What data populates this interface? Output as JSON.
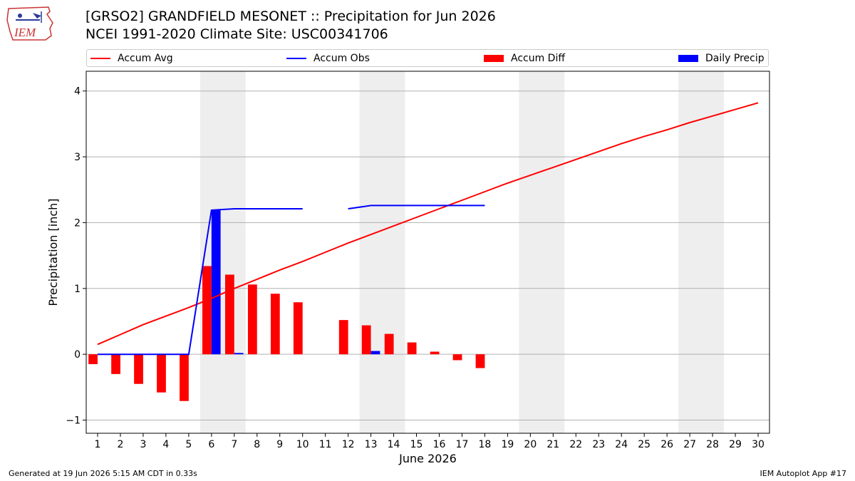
{
  "header": {
    "title_line1": "[GRSO2] GRANDFIELD MESONET :: Precipitation for Jun 2026",
    "title_line2": "NCEI 1991-2020 Climate Site: USC00341706",
    "logo_text": "IEM"
  },
  "colors": {
    "accum_avg": "#ff0000",
    "accum_obs": "#0000ff",
    "accum_diff": "#ff0000",
    "daily_precip": "#0000ff",
    "weekend_shade": "#eeeeee",
    "grid": "#b0b0b0"
  },
  "chart_data": {
    "type": "bar",
    "xlabel": "June 2026",
    "ylabel": "Precipitation [inch]",
    "xlim": [
      0.5,
      30.5
    ],
    "ylim": [
      -1.2,
      4.3
    ],
    "yticks": [
      -1,
      0,
      1,
      2,
      3,
      4
    ],
    "xticks": [
      1,
      2,
      3,
      4,
      5,
      6,
      7,
      8,
      9,
      10,
      11,
      12,
      13,
      14,
      15,
      16,
      17,
      18,
      19,
      20,
      21,
      22,
      23,
      24,
      25,
      26,
      27,
      28,
      29,
      30
    ],
    "grid": "horizontal",
    "legend_position": "top",
    "weekend_shading": [
      [
        5.5,
        7.5
      ],
      [
        12.5,
        14.5
      ],
      [
        19.5,
        21.5
      ],
      [
        26.5,
        28.5
      ]
    ],
    "series": [
      {
        "name": "Accum Avg",
        "kind": "line",
        "x": [
          1,
          2,
          3,
          4,
          5,
          6,
          7,
          8,
          9,
          10,
          11,
          12,
          13,
          14,
          15,
          16,
          17,
          18,
          19,
          20,
          21,
          22,
          23,
          24,
          25,
          26,
          27,
          28,
          29,
          30
        ],
        "values": [
          0.15,
          0.3,
          0.45,
          0.58,
          0.71,
          0.85,
          1.0,
          1.14,
          1.28,
          1.41,
          1.55,
          1.69,
          1.82,
          1.95,
          2.08,
          2.21,
          2.34,
          2.47,
          2.6,
          2.72,
          2.84,
          2.96,
          3.08,
          3.2,
          3.31,
          3.41,
          3.52,
          3.62,
          3.72,
          3.82
        ]
      },
      {
        "name": "Accum Obs",
        "kind": "line",
        "x": [
          1,
          2,
          3,
          4,
          5,
          6,
          7,
          8,
          9,
          10,
          11,
          12,
          13,
          14,
          15,
          16,
          17,
          18
        ],
        "values": [
          0.0,
          0.0,
          0.0,
          0.0,
          0.0,
          2.19,
          2.21,
          2.21,
          2.21,
          2.21,
          null,
          2.21,
          2.26,
          2.26,
          2.26,
          2.26,
          2.26,
          2.26
        ]
      },
      {
        "name": "Accum Diff",
        "kind": "bar",
        "x": [
          1,
          2,
          3,
          4,
          5,
          6,
          7,
          8,
          9,
          10,
          11,
          12,
          13,
          14,
          15,
          16,
          17,
          18
        ],
        "values": [
          -0.15,
          -0.3,
          -0.45,
          -0.58,
          -0.71,
          1.34,
          1.21,
          1.06,
          0.92,
          0.79,
          null,
          0.52,
          0.44,
          0.31,
          0.18,
          0.04,
          -0.09,
          -0.21
        ]
      },
      {
        "name": "Daily Precip",
        "kind": "bar",
        "x": [
          1,
          2,
          3,
          4,
          5,
          6,
          7,
          8,
          9,
          10,
          11,
          12,
          13,
          14,
          15,
          16,
          17,
          18
        ],
        "values": [
          0,
          0,
          0,
          0,
          0,
          2.19,
          0.02,
          0,
          0,
          0,
          null,
          0,
          0.05,
          0,
          0,
          0,
          0,
          0
        ]
      }
    ]
  },
  "footer": {
    "generated": "Generated at 19 Jun 2026 5:15 AM CDT in 0.33s",
    "app": "IEM Autoplot App #17"
  }
}
